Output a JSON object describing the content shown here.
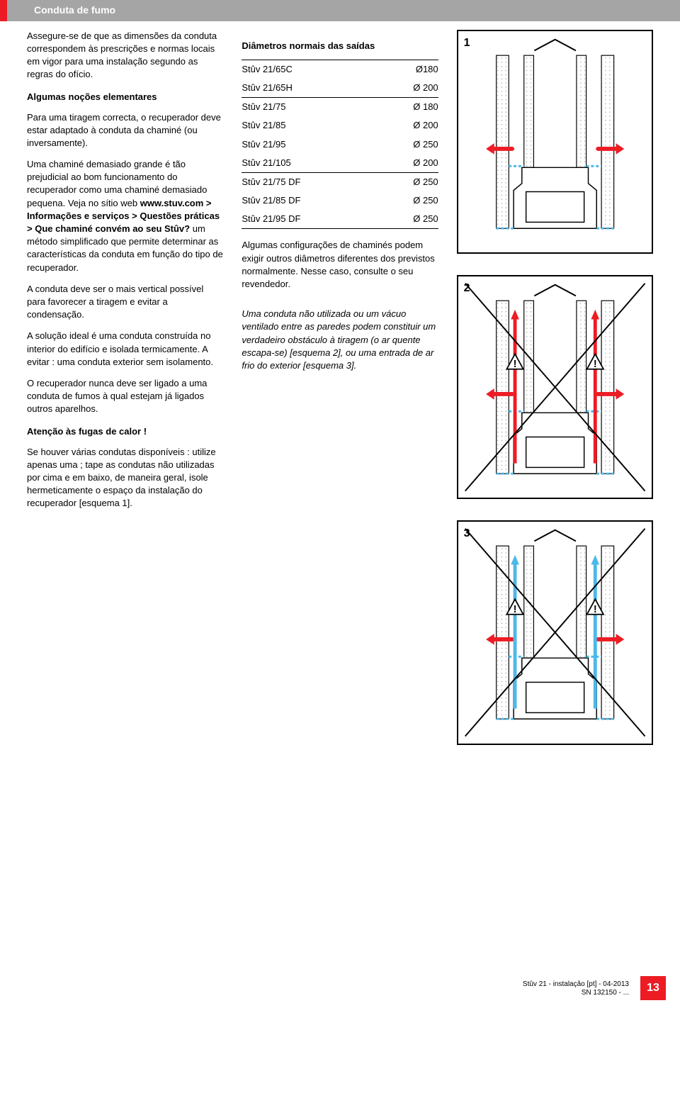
{
  "colors": {
    "accent": "#ed1c24",
    "header_bg": "#a5a5a5",
    "header_text": "#ffffff",
    "text": "#000000",
    "cold": "#4db8e8",
    "hot": "#ed1c24",
    "wall_fill": "#ffffff",
    "wall_dots": "#999999"
  },
  "header": {
    "title": "Conduta de fumo"
  },
  "left": {
    "p1": "Assegure-se de que as dimensões da conduta correspondem às prescrições e normas locais em vigor para uma instalação segundo as regras do ofício.",
    "sub1": "Algumas noções elementares",
    "p2": "Para uma tiragem correcta, o recuperador deve estar adaptado à conduta da chaminé (ou inversamente).",
    "p3a": "Uma chaminé demasiado grande é tão prejudicial ao bom funcionamento do recuperador como uma chaminé demasiado pequena. Veja no sítio web ",
    "p3b": "www.stuv.com > Informações e serviços > Questões práticas > Que chaminé convém ao seu Stûv?",
    "p3c": " um método simplificado que permite determinar as características da conduta em função do tipo de recuperador.",
    "p4": "A conduta deve ser o mais vertical possível para favorecer a tiragem e evitar a condensação.",
    "p5": "A solução ideal é uma conduta construída no interior do edifício e isolada termicamente. A evitar : uma conduta exterior sem isolamento.",
    "p6": "O recuperador nunca deve ser ligado a uma conduta de fumos à qual estejam já ligados outros aparelhos.",
    "sub2": "Atenção às fugas de calor !",
    "p7": "Se houver várias condutas disponíveis : utilize apenas uma ; tape as condutas não utilizadas por cima e em baixo, de maneira geral, isole hermeticamente o espaço da instalação do recuperador [esquema 1]."
  },
  "mid": {
    "heading": "Diâmetros normais das saídas",
    "groups": [
      [
        {
          "model": "Stûv 21/65C",
          "diam": "Ø180"
        },
        {
          "model": "Stûv 21/65H",
          "diam": "Ø 200"
        }
      ],
      [
        {
          "model": "Stûv 21/75",
          "diam": "Ø 180"
        },
        {
          "model": "Stûv 21/85",
          "diam": "Ø 200"
        },
        {
          "model": "Stûv 21/95",
          "diam": "Ø 250"
        },
        {
          "model": "Stûv 21/105",
          "diam": "Ø 200"
        }
      ],
      [
        {
          "model": "Stûv 21/75 DF",
          "diam": "Ø 250"
        },
        {
          "model": "Stûv 21/85 DF",
          "diam": "Ø 250"
        },
        {
          "model": "Stûv 21/95 DF",
          "diam": "Ø 250"
        }
      ]
    ],
    "p1": "Algumas configurações de chaminés podem exigir outros diâmetros diferentes dos previstos normalmente. Nesse caso, consulte o seu revendedor.",
    "p2": "Uma conduta não utilizada ou um vácuo ventilado entre as paredes podem constituir um verdadeiro obstáculo à tiragem (o ar quente escapa-se) [esquema 2], ou uma entrada de ar frio do exterior [esquema 3]."
  },
  "diagrams": [
    {
      "num": "1",
      "cross": false,
      "warn": false,
      "side_flow": "hot",
      "center_flow": "cold",
      "gap_flow": "cold",
      "show_gap_flow": false
    },
    {
      "num": "2",
      "cross": true,
      "warn": true,
      "side_flow": "hot",
      "center_flow": "cold",
      "gap_flow": "hot",
      "show_gap_flow": true
    },
    {
      "num": "3",
      "cross": true,
      "warn": true,
      "side_flow": "hot",
      "center_flow": "cold",
      "gap_flow": "cold",
      "show_gap_flow": true
    }
  ],
  "footer": {
    "line1": "Stûv 21 - instalação [pt] - 04-2013",
    "line2": "SN 132150 - ...",
    "page": "13"
  }
}
